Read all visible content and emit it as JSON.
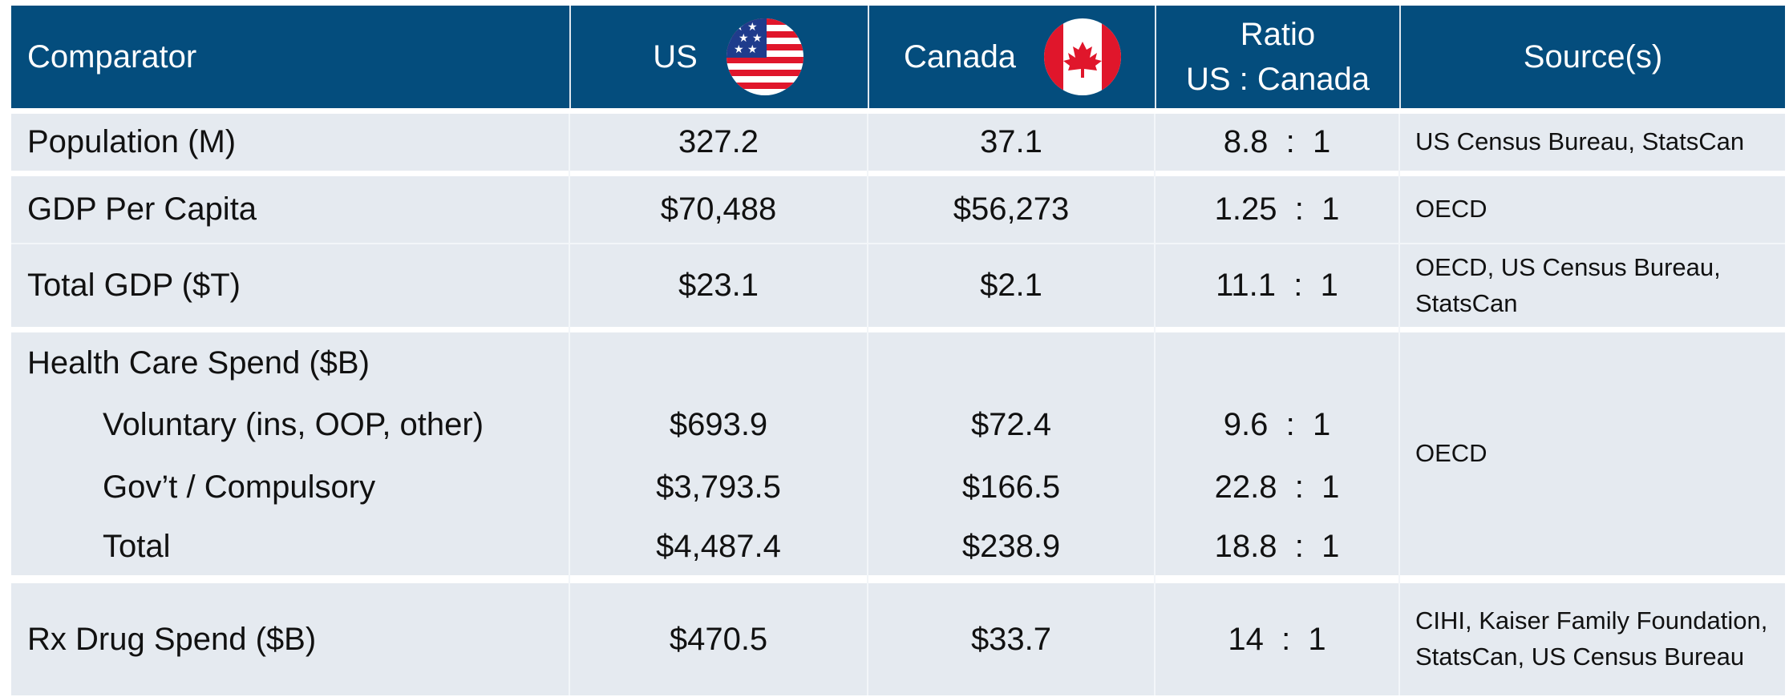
{
  "table": {
    "header": [
      "Comparator",
      "US",
      "Canada",
      [
        "Ratio",
        "US : Canada"
      ],
      "Source(s)"
    ],
    "rows": [
      {
        "label": "Population (M)",
        "us": "327.2",
        "canada": "37.1",
        "ratio": "8.8  :  1",
        "source": "US Census Bureau, StatsCan"
      },
      {
        "label": "GDP Per Capita",
        "us": "$70,488",
        "canada": "$56,273",
        "ratio": "1.25  :  1",
        "source": "OECD"
      },
      {
        "label": "Total GDP ($T)",
        "us": "$23.1",
        "canada": "$2.1",
        "ratio": "11.1  :  1",
        "source": "OECD, US Census Bureau, StatsCan"
      },
      {
        "label": "Health Care Spend ($B)",
        "source": "OECD",
        "subrows": [
          {
            "label": "Voluntary (ins, OOP, other)",
            "us": "$693.9",
            "canada": "$72.4",
            "ratio": "9.6  :  1"
          },
          {
            "label": "Gov’t / Compulsory",
            "us": "$3,793.5",
            "canada": "$166.5",
            "ratio": "22.8  :  1"
          },
          {
            "label": "Total",
            "us": "$4,487.4",
            "canada": "$238.9",
            "ratio": "18.8  :  1"
          }
        ]
      },
      {
        "label": "Rx Drug Spend ($B)",
        "us": "$470.5",
        "canada": "$33.7",
        "ratio": "14  :  1",
        "source": "CIHI, Kaiser Family Foundation, StatsCan, US Census Bureau"
      }
    ]
  }
}
